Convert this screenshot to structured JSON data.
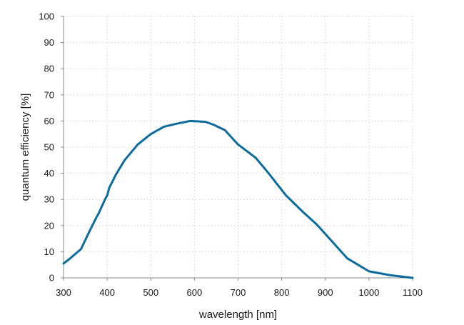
{
  "chart_data": {
    "type": "line",
    "title": "",
    "xlabel": "wavelength [nm]",
    "ylabel": "quantum efficiency [%]",
    "xlim": [
      300,
      1100
    ],
    "ylim": [
      0,
      100
    ],
    "xticks": [
      300,
      400,
      500,
      600,
      700,
      800,
      900,
      1000,
      1100
    ],
    "yticks": [
      0,
      10,
      20,
      30,
      40,
      50,
      60,
      70,
      80,
      90,
      100
    ],
    "grid": true,
    "line_color": "#0d6a9a",
    "series": [
      {
        "name": "quantum efficiency",
        "x": [
          300,
          312,
          340,
          360,
          375,
          380,
          395,
          400,
          405,
          420,
          440,
          470,
          500,
          530,
          560,
          590,
          625,
          645,
          670,
          700,
          740,
          770,
          810,
          850,
          880,
          915,
          950,
          1000,
          1050,
          1100
        ],
        "y": [
          5.5,
          7,
          11,
          18,
          23,
          24.5,
          30,
          31.5,
          34.5,
          39.5,
          45,
          51,
          55,
          57.8,
          59,
          60,
          59.7,
          58.5,
          56.5,
          51,
          46,
          40,
          31.5,
          25,
          20.5,
          14,
          7.5,
          2.5,
          1,
          0
        ]
      }
    ]
  }
}
